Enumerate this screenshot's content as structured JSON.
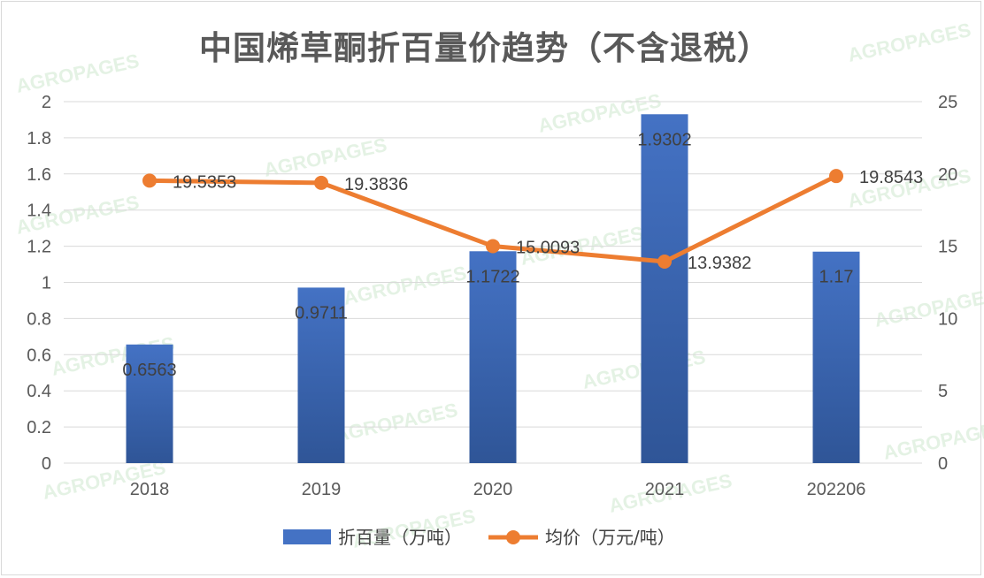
{
  "watermark_text": "AGROPAGES",
  "colors": {
    "bar": "#4472c4",
    "bar_dark": "#2f5597",
    "line": "#ed7d31",
    "grid": "#d9d9d9",
    "axis_text": "#595959"
  },
  "chart_data": {
    "type": "bar",
    "title": "中国烯草酮折百量价趋势（不含退税）",
    "categories": [
      "2018",
      "2019",
      "2020",
      "2021",
      "202206"
    ],
    "series": [
      {
        "name": "折百量（万吨）",
        "type": "bar",
        "axis": "left",
        "values": [
          0.6563,
          0.9711,
          1.1722,
          1.9302,
          1.17
        ],
        "labels": [
          "0.6563",
          "0.9711",
          "1.1722",
          "1.9302",
          "1.17"
        ]
      },
      {
        "name": "均价（万元/吨）",
        "type": "line",
        "axis": "right",
        "values": [
          19.5353,
          19.3836,
          15.0093,
          13.9382,
          19.8543
        ],
        "labels": [
          "19.5353",
          "19.3836",
          "15.0093",
          "13.9382",
          "19.8543"
        ]
      }
    ],
    "y_left": {
      "range": [
        0,
        2
      ],
      "ticks": [
        "0",
        "0.2",
        "0.4",
        "0.6",
        "0.8",
        "1",
        "1.2",
        "1.4",
        "1.6",
        "1.8",
        "2"
      ]
    },
    "y_right": {
      "range": [
        0,
        25
      ],
      "ticks": [
        "0",
        "5",
        "10",
        "15",
        "20",
        "25"
      ]
    },
    "grid": true,
    "legend_position": "bottom"
  }
}
